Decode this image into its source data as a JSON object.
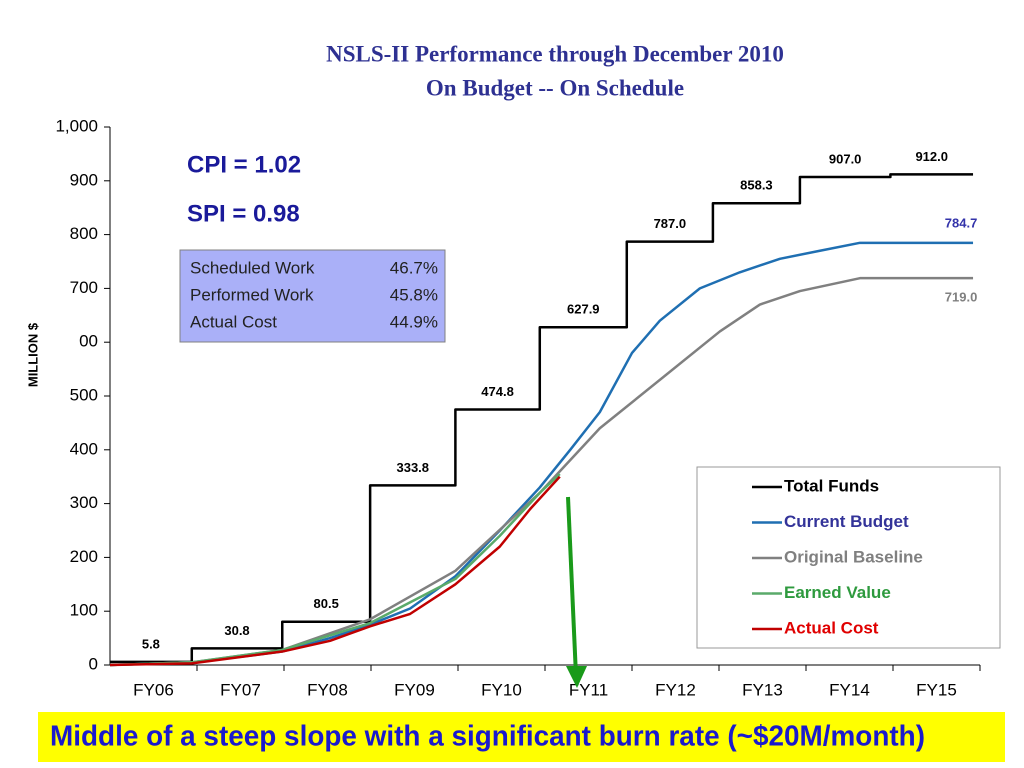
{
  "chart_data": {
    "type": "line",
    "title": "NSLS-II Performance through December 2010",
    "subtitle": "On Budget -- On Schedule",
    "y_label": "MILLION  $",
    "xlim": [
      0,
      10
    ],
    "xticks": [
      {
        "value": 0.5,
        "label": "FY06"
      },
      {
        "value": 1.5,
        "label": "FY07"
      },
      {
        "value": 2.5,
        "label": "FY08"
      },
      {
        "value": 3.5,
        "label": "FY09"
      },
      {
        "value": 4.5,
        "label": "FY10"
      },
      {
        "value": 5.5,
        "label": "FY11"
      },
      {
        "value": 6.5,
        "label": "FY12"
      },
      {
        "value": 7.5,
        "label": "FY13"
      },
      {
        "value": 8.5,
        "label": "FY14"
      },
      {
        "value": 9.5,
        "label": "FY15"
      }
    ],
    "ylim": [
      0,
      1000
    ],
    "yticks": [
      0,
      100,
      200,
      300,
      400,
      500,
      {
        "value": 600,
        "label": "00"
      },
      700,
      800,
      900,
      {
        "value": 1000,
        "label": "1,000"
      }
    ],
    "series": [
      {
        "name": "Total Funds",
        "color": "#000000",
        "step": true,
        "x": [
          0,
          0.94,
          1.98,
          2.99,
          3.97,
          4.94,
          5.94,
          6.93,
          7.93,
          8.97
        ],
        "x_end": 9.92,
        "values": [
          5.8,
          30.8,
          80.5,
          333.8,
          474.8,
          627.9,
          787.0,
          858.3,
          907.0,
          912.0
        ],
        "value_labels": [
          "5.8",
          "30.8",
          "80.5",
          "333.8",
          "474.8",
          "627.9",
          "787.0",
          "858.3",
          "907.0",
          "912.0"
        ]
      },
      {
        "name": "Current Budget",
        "color": "#1f6fb2",
        "text_color": "#333399",
        "x": [
          0,
          0.94,
          1.49,
          1.98,
          2.53,
          2.99,
          3.45,
          3.97,
          4.48,
          4.94,
          5.29,
          5.63,
          6.0,
          6.32,
          6.78,
          7.24,
          7.7,
          8.16,
          8.62,
          9.92
        ],
        "values": [
          0,
          5,
          15,
          25,
          50,
          75,
          105,
          165,
          250,
          330,
          400,
          470,
          580,
          640,
          700,
          730,
          755,
          770,
          784.7,
          784.7
        ],
        "end_label_color": "#3333aa"
      },
      {
        "name": "Original Baseline",
        "color": "#808080",
        "text_color": "#808080",
        "x": [
          0,
          0.94,
          1.98,
          2.99,
          3.97,
          4.94,
          5.63,
          6.32,
          7.01,
          7.47,
          7.93,
          8.62,
          9.92
        ],
        "values": [
          0,
          5,
          28,
          85,
          175,
          320,
          440,
          530,
          620,
          670,
          695,
          719,
          719
        ],
        "value_labels": [
          null,
          null,
          null,
          null,
          null,
          null,
          null,
          null,
          null,
          null,
          null,
          null,
          "719.0"
        ]
      },
      {
        "name": "Earned Value",
        "color": "#5aaa6a",
        "text_color": "#2e9a3e",
        "x": [
          0,
          0.94,
          1.98,
          2.99,
          3.97,
          4.48,
          4.94,
          5.17
        ],
        "values": [
          0,
          5,
          28,
          78,
          160,
          240,
          320,
          355
        ]
      },
      {
        "name": "Actual Cost",
        "color": "#c00000",
        "text_color": "#e00000",
        "x": [
          0,
          0.94,
          1.98,
          2.53,
          2.99,
          3.45,
          3.97,
          4.48,
          4.83,
          5.17
        ],
        "values": [
          0,
          3,
          25,
          45,
          72,
          95,
          150,
          220,
          290,
          350
        ]
      }
    ],
    "annotations": {
      "cpi": "CPI = 1.02",
      "spi": "SPI = 0.98",
      "panel": [
        [
          "Scheduled Work",
          "46.7%"
        ],
        [
          "Performed Work",
          "45.8%"
        ],
        [
          "Actual Cost",
          "44.9%"
        ]
      ]
    },
    "banner": "Middle of a steep slope with a significant burn rate (~$20M/month)"
  }
}
